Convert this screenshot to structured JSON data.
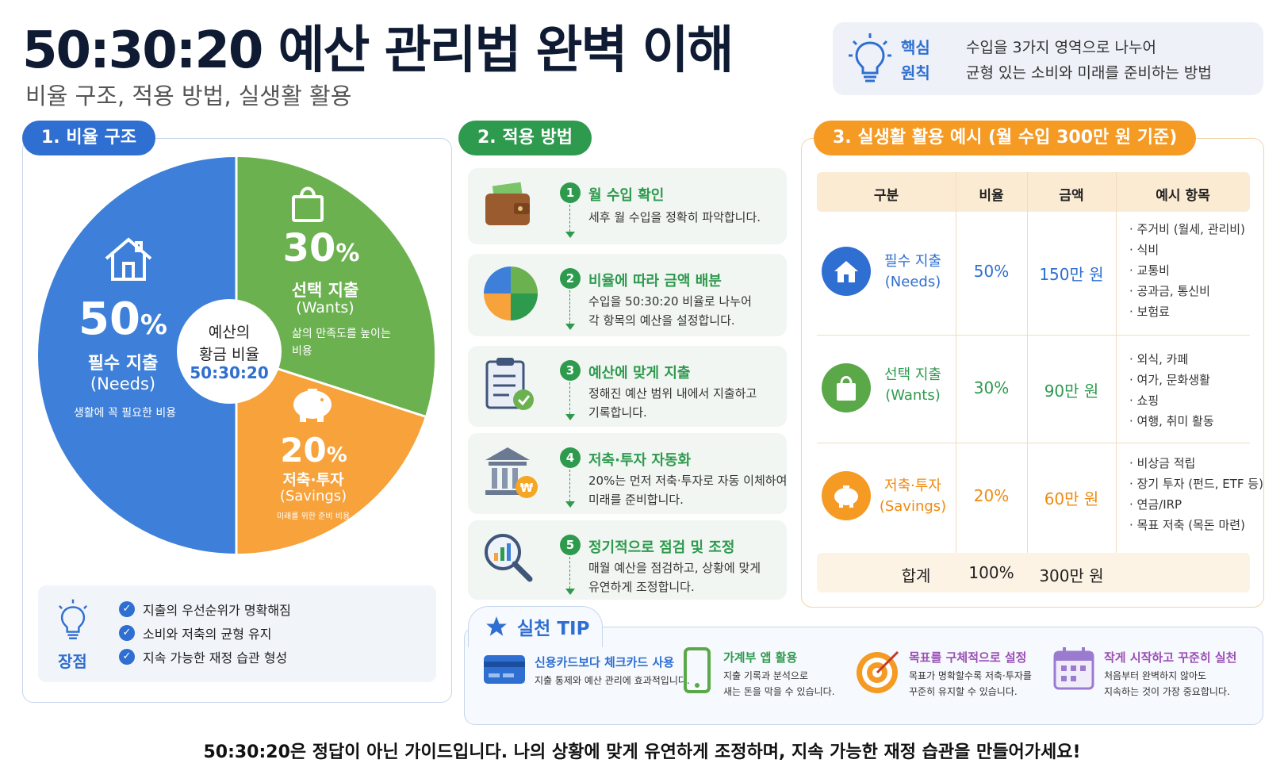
{
  "header": {
    "title": "50:30:20 예산 관리법 완벽 이해",
    "subtitle": "비율 구조, 적용 방법, 실생활 활용",
    "principle_label_1": "핵심",
    "principle_label_2": "원칙",
    "principle_text_1": "수입을 3가지 영역으로 나누어",
    "principle_text_2": "균형 있는 소비와 미래를 준비하는 방법"
  },
  "section1": {
    "title": "1. 비율 구조",
    "center_1": "예산의",
    "center_2": "황금 비율",
    "center_3": "50:30:20",
    "needs": {
      "pct": "50",
      "pct_unit": "%",
      "name": "필수 지출",
      "en": "(Needs)",
      "desc": "생활에 꼭 필요한 비용"
    },
    "wants": {
      "pct": "30",
      "pct_unit": "%",
      "name": "선택 지출",
      "en": "(Wants)",
      "desc_1": "삶의 만족도를 높이는",
      "desc_2": "비용"
    },
    "savings": {
      "pct": "20",
      "pct_unit": "%",
      "name": "저축·투자",
      "en": "(Savings)",
      "desc": "미래를 위한 준비 비용"
    },
    "adv_label": "장점",
    "advantages": [
      "지출의 우선순위가 명확해짐",
      "소비와 저축의 균형 유지",
      "지속 가능한 재정 습관 형성"
    ]
  },
  "section2": {
    "title": "2. 적용 방법",
    "steps": [
      {
        "num": "1",
        "title": "월 수입 확인",
        "desc_1": "세후 월 수입을 정확히 파악합니다.",
        "desc_2": ""
      },
      {
        "num": "2",
        "title": "비율에 따라 금액 배분",
        "desc_1": "수입을 50:30:20 비율로 나누어",
        "desc_2": "각 항목의 예산을 설정합니다."
      },
      {
        "num": "3",
        "title": "예산에 맞게 지출",
        "desc_1": "정해진 예산 범위 내에서 지출하고",
        "desc_2": "기록합니다."
      },
      {
        "num": "4",
        "title": "저축·투자 자동화",
        "desc_1": "20%는 먼저 저축·투자로 자동 이체하여",
        "desc_2": "미래를 준비합니다."
      },
      {
        "num": "5",
        "title": "정기적으로 점검 및 조정",
        "desc_1": "매월 예산을 점검하고, 상황에 맞게",
        "desc_2": "유연하게 조정합니다."
      }
    ]
  },
  "section3": {
    "title": "3. 실생활 활용 예시 (월 수입 300만 원 기준)",
    "headers": [
      "구분",
      "비율",
      "금액",
      "예시 항목"
    ],
    "rows": [
      {
        "name": "필수 지출",
        "en": "(Needs)",
        "ratio": "50%",
        "amount": "150만 원",
        "examples": [
          "· 주거비 (월세, 관리비)",
          "· 식비",
          "· 교통비",
          "· 공과금, 통신비",
          "· 보험료"
        ]
      },
      {
        "name": "선택 지출",
        "en": "(Wants)",
        "ratio": "30%",
        "amount": "90만 원",
        "examples": [
          "· 외식, 카페",
          "· 여가, 문화생활",
          "· 쇼핑",
          "· 여행, 취미 활동"
        ]
      },
      {
        "name": "저축·투자",
        "en": "(Savings)",
        "ratio": "20%",
        "amount": "60만 원",
        "examples": [
          "· 비상금 적립",
          "· 장기 투자 (펀드, ETF 등)",
          "· 연금/IRP",
          "· 목표 저축 (목돈 마련)"
        ]
      }
    ],
    "total": {
      "label": "합계",
      "ratio": "100%",
      "amount": "300만 원"
    }
  },
  "tips": {
    "title": "실천 TIP",
    "items": [
      {
        "title": "신용카드보다 체크카드 사용",
        "desc_1": "지출 통제와 예산 관리에 효과적입니다.",
        "desc_2": ""
      },
      {
        "title": "가계부 앱 활용",
        "desc_1": "지출 기록과 분석으로",
        "desc_2": "새는 돈을 막을 수 있습니다."
      },
      {
        "title": "목표를 구체적으로 설정",
        "desc_1": "목표가 명확할수록 저축·투자를",
        "desc_2": "꾸준히 유지할 수 있습니다."
      },
      {
        "title": "작게 시작하고 꾸준히 실천",
        "desc_1": "처음부터 완벽하지 않아도",
        "desc_2": "지속하는 것이 가장 중요합니다."
      }
    ]
  },
  "footer": "50:30:20은 정답이 아닌 가이드입니다. 나의 상황에 맞게 유연하게 조정하며, 지속 가능한 재정 습관을 만들어가세요!",
  "colors": {
    "blue": "#2f6fd1",
    "green": "#2e9a4e",
    "orange": "#f59a23",
    "pie_blue": "#3d7fd9",
    "pie_green": "#6cb150",
    "pie_orange": "#f7a23a"
  }
}
